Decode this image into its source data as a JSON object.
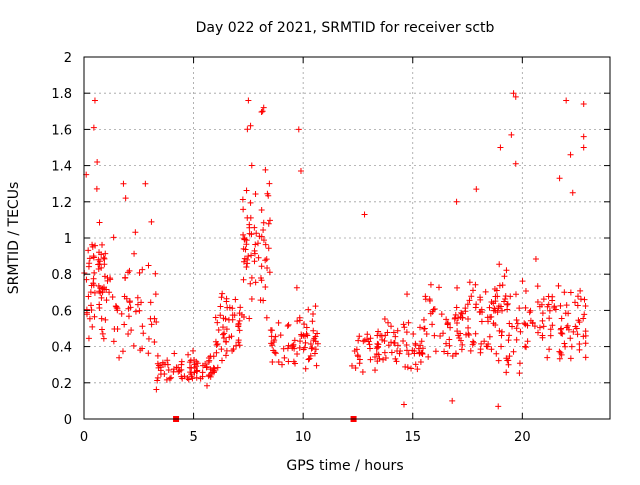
{
  "chart_data": {
    "type": "scatter",
    "title": "Day 022 of 2021, SRMTID for receiver sctb",
    "xlabel": "GPS time / hours",
    "ylabel": "SRMTID / TECUs",
    "xlim": [
      0,
      24
    ],
    "ylim": [
      0,
      2
    ],
    "x_ticks": [
      0,
      5,
      10,
      15,
      20
    ],
    "y_ticks": [
      0,
      0.2,
      0.4,
      0.6,
      0.8,
      1,
      1.2,
      1.4,
      1.6,
      1.8,
      2
    ],
    "x_tick_labels": [
      "0",
      "5",
      "10",
      "15",
      "20"
    ],
    "y_tick_labels": [
      "0",
      "0.2",
      "0.4",
      "0.6",
      "0.8",
      "1",
      "1.2",
      "1.4",
      "1.6",
      "1.8",
      "2"
    ],
    "grid": true,
    "marker": "plus",
    "series_color": "#ff0000",
    "zero_markers_x": [
      4.2,
      12.3
    ],
    "envelope": [
      {
        "from": 0.0,
        "to": 1.0,
        "base": 0.75,
        "spread": 0.45,
        "density": 60,
        "outliers": [
          [
            0.5,
            1.76
          ],
          [
            0.45,
            1.61
          ],
          [
            0.6,
            1.42
          ],
          [
            0.1,
            1.35
          ]
        ]
      },
      {
        "from": 1.0,
        "to": 3.3,
        "base": 0.6,
        "spread": 0.35,
        "density": 60,
        "outliers": [
          [
            1.8,
            1.3
          ],
          [
            2.8,
            1.3
          ],
          [
            1.9,
            1.22
          ]
        ]
      },
      {
        "from": 3.3,
        "to": 6.0,
        "base": 0.27,
        "spread": 0.12,
        "density": 80,
        "outliers": []
      },
      {
        "from": 6.0,
        "to": 7.2,
        "base": 0.5,
        "spread": 0.25,
        "density": 50,
        "outliers": []
      },
      {
        "from": 7.2,
        "to": 8.5,
        "base": 0.95,
        "spread": 0.55,
        "density": 70,
        "outliers": [
          [
            7.5,
            1.76
          ],
          [
            8.2,
            1.72
          ],
          [
            8.15,
            1.7
          ],
          [
            7.6,
            1.62
          ]
        ]
      },
      {
        "from": 8.5,
        "to": 10.7,
        "base": 0.42,
        "spread": 0.2,
        "density": 70,
        "outliers": [
          [
            9.8,
            1.6
          ],
          [
            9.9,
            1.37
          ]
        ]
      },
      {
        "from": 12.2,
        "to": 15.5,
        "base": 0.38,
        "spread": 0.2,
        "density": 90,
        "outliers": [
          [
            12.8,
            1.13
          ],
          [
            14.6,
            0.08
          ]
        ]
      },
      {
        "from": 15.5,
        "to": 18.5,
        "base": 0.5,
        "spread": 0.3,
        "density": 90,
        "outliers": [
          [
            17.0,
            1.2
          ],
          [
            17.9,
            1.27
          ],
          [
            16.8,
            0.1
          ]
        ]
      },
      {
        "from": 18.5,
        "to": 20.0,
        "base": 0.55,
        "spread": 0.45,
        "density": 60,
        "outliers": [
          [
            19.6,
            1.8
          ],
          [
            19.7,
            1.78
          ],
          [
            19.5,
            1.57
          ],
          [
            19.7,
            1.41
          ],
          [
            19.0,
            1.5
          ],
          [
            18.9,
            0.07
          ]
        ]
      },
      {
        "from": 20.0,
        "to": 22.9,
        "base": 0.52,
        "spread": 0.3,
        "density": 90,
        "outliers": [
          [
            22.0,
            1.76
          ],
          [
            22.8,
            1.74
          ],
          [
            22.8,
            1.56
          ],
          [
            22.8,
            1.5
          ],
          [
            22.2,
            1.46
          ],
          [
            21.7,
            1.33
          ],
          [
            22.3,
            1.25
          ]
        ]
      }
    ]
  }
}
